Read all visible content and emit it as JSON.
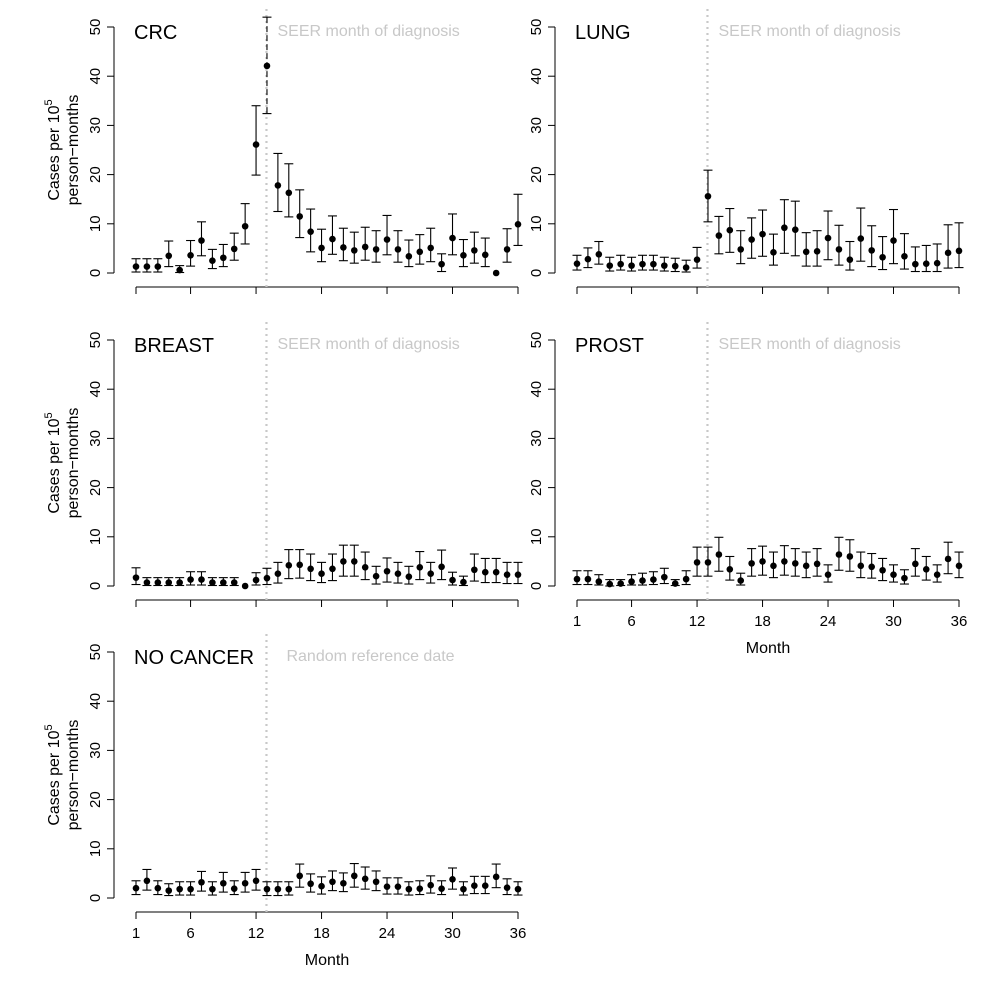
{
  "chart_data": [
    {
      "type": "scatter",
      "panel": "CRC",
      "label": "CRC",
      "annotation": "SEER month of diagnosis",
      "ylabel_line1": "Cases per 10",
      "ylabel_sup": "5",
      "ylabel_line2": "person−months",
      "xlabel": "",
      "ylim": [
        0,
        50
      ],
      "yticks": [
        0,
        10,
        20,
        30,
        40,
        50
      ],
      "xlim": [
        1,
        36
      ],
      "xticks": [],
      "reference_month": 13,
      "points": {
        "x": [
          1,
          2,
          3,
          4,
          5,
          6,
          7,
          8,
          9,
          10,
          11,
          12,
          13,
          14,
          15,
          16,
          17,
          18,
          19,
          20,
          21,
          22,
          23,
          24,
          25,
          26,
          27,
          28,
          29,
          30,
          31,
          32,
          33,
          34,
          35,
          36
        ],
        "y": [
          1.3,
          1.3,
          1.3,
          3.5,
          0.6,
          3.6,
          6.6,
          2.5,
          3.1,
          4.9,
          9.5,
          26.1,
          42.1,
          17.8,
          16.3,
          11.5,
          8.4,
          5.1,
          6.9,
          5.2,
          4.6,
          5.3,
          4.8,
          6.8,
          4.8,
          3.4,
          4.3,
          5.1,
          1.8,
          7.1,
          3.6,
          4.6,
          3.7,
          0.0,
          4.8,
          9.9
        ],
        "lower": [
          0.2,
          0.2,
          0.2,
          1.3,
          0.1,
          1.4,
          3.5,
          0.9,
          1.3,
          2.6,
          5.9,
          19.9,
          32.4,
          12.5,
          11.4,
          7.2,
          4.3,
          2.3,
          3.8,
          2.5,
          2.0,
          2.6,
          2.2,
          3.7,
          2.2,
          1.3,
          1.8,
          2.3,
          0.3,
          3.7,
          1.3,
          2.0,
          1.3,
          0.0,
          2.2,
          5.6
        ],
        "upper": [
          2.9,
          2.9,
          2.9,
          6.5,
          1.5,
          6.6,
          10.4,
          4.8,
          5.8,
          8.1,
          14.1,
          34.0,
          52.0,
          24.3,
          22.2,
          16.9,
          13.0,
          8.9,
          11.6,
          9.1,
          8.3,
          9.3,
          8.6,
          11.7,
          8.6,
          6.7,
          7.8,
          9.1,
          3.9,
          12.0,
          6.8,
          8.3,
          7.1,
          0.0,
          9.0,
          16.0
        ]
      }
    },
    {
      "type": "scatter",
      "panel": "LUNG",
      "label": "LUNG",
      "annotation": "SEER month of diagnosis",
      "ylabel_line1": "",
      "ylabel_sup": "",
      "ylabel_line2": "",
      "xlabel": "",
      "ylim": [
        0,
        50
      ],
      "yticks": [
        0,
        10,
        20,
        30,
        40,
        50
      ],
      "xlim": [
        1,
        36
      ],
      "xticks": [],
      "reference_month": 13,
      "points": {
        "x": [
          1,
          2,
          3,
          4,
          5,
          6,
          7,
          8,
          9,
          10,
          11,
          12,
          13,
          14,
          15,
          16,
          17,
          18,
          19,
          20,
          21,
          22,
          23,
          24,
          25,
          26,
          27,
          28,
          29,
          30,
          31,
          32,
          33,
          34,
          35,
          36
        ],
        "y": [
          1.9,
          2.8,
          3.8,
          1.5,
          1.8,
          1.5,
          1.8,
          1.8,
          1.5,
          1.4,
          1.1,
          2.7,
          15.6,
          7.6,
          8.7,
          4.8,
          6.8,
          7.9,
          4.2,
          9.2,
          8.8,
          4.3,
          4.4,
          7.1,
          4.8,
          2.7,
          7.0,
          4.6,
          3.2,
          6.6,
          3.4,
          1.8,
          1.9,
          2.0,
          4.1,
          4.5
        ],
        "lower": [
          0.6,
          1.1,
          1.8,
          0.4,
          0.6,
          0.4,
          0.6,
          0.6,
          0.4,
          0.3,
          0.2,
          1.0,
          10.4,
          3.9,
          4.2,
          1.9,
          3.0,
          3.4,
          1.6,
          4.0,
          3.5,
          1.4,
          1.4,
          2.7,
          1.6,
          0.6,
          2.4,
          1.3,
          0.7,
          1.9,
          0.8,
          0.3,
          0.3,
          0.3,
          1.0,
          1.1
        ],
        "upper": [
          3.6,
          5.1,
          6.4,
          3.2,
          3.6,
          3.2,
          3.6,
          3.6,
          3.2,
          3.0,
          2.6,
          5.2,
          20.9,
          11.5,
          13.1,
          8.6,
          11.2,
          12.8,
          7.9,
          14.9,
          14.6,
          8.2,
          8.6,
          12.6,
          9.7,
          6.4,
          13.2,
          9.6,
          7.4,
          12.9,
          8.0,
          5.3,
          5.6,
          5.9,
          9.8,
          10.2
        ]
      }
    },
    {
      "type": "scatter",
      "panel": "BREAST",
      "label": "BREAST",
      "annotation": "SEER month of diagnosis",
      "ylabel_line1": "Cases per 10",
      "ylabel_sup": "5",
      "ylabel_line2": "person−months",
      "xlabel": "",
      "ylim": [
        0,
        50
      ],
      "yticks": [
        0,
        10,
        20,
        30,
        40,
        50
      ],
      "xlim": [
        1,
        36
      ],
      "xticks": [],
      "reference_month": 13,
      "points": {
        "x": [
          1,
          2,
          3,
          4,
          5,
          6,
          7,
          8,
          9,
          10,
          11,
          12,
          13,
          14,
          15,
          16,
          17,
          18,
          19,
          20,
          21,
          22,
          23,
          24,
          25,
          26,
          27,
          28,
          29,
          30,
          31,
          32,
          33,
          34,
          35,
          36
        ],
        "y": [
          1.7,
          0.7,
          0.7,
          0.7,
          0.7,
          1.3,
          1.3,
          0.7,
          0.7,
          0.7,
          0.0,
          1.2,
          1.6,
          2.5,
          4.2,
          4.3,
          3.5,
          2.5,
          3.5,
          5.0,
          5.0,
          3.8,
          2.0,
          3.0,
          2.5,
          1.9,
          3.8,
          2.5,
          3.9,
          1.2,
          0.8,
          3.3,
          2.8,
          2.8,
          2.3,
          2.3
        ],
        "lower": [
          0.3,
          0.1,
          0.1,
          0.1,
          0.1,
          0.2,
          0.2,
          0.1,
          0.1,
          0.1,
          0.0,
          0.2,
          0.3,
          0.6,
          1.5,
          1.6,
          1.1,
          0.7,
          1.1,
          2.0,
          2.0,
          1.3,
          0.4,
          0.8,
          0.6,
          0.4,
          1.3,
          0.6,
          1.3,
          0.2,
          0.1,
          1.0,
          0.7,
          0.7,
          0.5,
          0.5
        ],
        "upper": [
          3.7,
          1.7,
          1.7,
          1.7,
          1.7,
          2.9,
          2.9,
          1.7,
          1.7,
          1.7,
          0.0,
          2.7,
          3.6,
          4.8,
          7.4,
          7.4,
          6.5,
          4.8,
          6.5,
          8.3,
          8.3,
          6.9,
          4.0,
          5.7,
          4.8,
          4.0,
          7.0,
          4.8,
          7.3,
          2.8,
          2.0,
          6.5,
          5.6,
          5.6,
          4.8,
          4.8
        ]
      }
    },
    {
      "type": "scatter",
      "panel": "PROST",
      "label": "PROST",
      "annotation": "SEER month of diagnosis",
      "ylabel_line1": "",
      "ylabel_sup": "",
      "ylabel_line2": "",
      "xlabel": "Month",
      "ylim": [
        0,
        50
      ],
      "yticks": [
        0,
        10,
        20,
        30,
        40,
        50
      ],
      "xlim": [
        1,
        36
      ],
      "xticks": [
        1,
        6,
        12,
        18,
        24,
        30,
        36
      ],
      "reference_month": 13,
      "points": {
        "x": [
          1,
          2,
          3,
          4,
          5,
          6,
          7,
          8,
          9,
          10,
          11,
          12,
          13,
          14,
          15,
          16,
          17,
          18,
          19,
          20,
          21,
          22,
          23,
          24,
          25,
          26,
          27,
          28,
          29,
          30,
          31,
          32,
          33,
          34,
          35,
          36
        ],
        "y": [
          1.4,
          1.4,
          0.9,
          0.4,
          0.5,
          0.9,
          1.1,
          1.3,
          1.8,
          0.5,
          1.4,
          4.8,
          4.8,
          6.4,
          3.4,
          1.1,
          4.6,
          5.0,
          4.1,
          5.0,
          4.6,
          4.1,
          4.5,
          2.3,
          6.4,
          6.0,
          4.1,
          3.9,
          3.2,
          2.3,
          1.6,
          4.5,
          3.4,
          2.3,
          5.5,
          4.1
        ],
        "lower": [
          0.3,
          0.3,
          0.2,
          0.0,
          0.1,
          0.2,
          0.2,
          0.3,
          0.5,
          0.1,
          0.3,
          2.0,
          2.0,
          3.0,
          1.2,
          0.2,
          2.0,
          2.2,
          1.7,
          2.2,
          2.0,
          1.7,
          2.0,
          0.8,
          3.2,
          3.0,
          1.7,
          1.6,
          1.1,
          0.8,
          0.4,
          2.0,
          1.2,
          0.8,
          2.5,
          1.7
        ],
        "upper": [
          3.1,
          3.1,
          2.3,
          1.3,
          1.3,
          2.3,
          2.6,
          2.9,
          3.6,
          1.3,
          3.1,
          7.9,
          7.9,
          9.9,
          6.0,
          2.6,
          7.6,
          8.1,
          6.9,
          8.2,
          7.6,
          6.9,
          7.6,
          4.3,
          9.9,
          9.4,
          6.9,
          6.6,
          5.6,
          4.3,
          3.3,
          7.6,
          6.0,
          4.3,
          8.9,
          6.9
        ]
      }
    },
    {
      "type": "scatter",
      "panel": "NO CANCER",
      "label": "NO CANCER",
      "annotation": "Random reference date",
      "ylabel_line1": "Cases per 10",
      "ylabel_sup": "5",
      "ylabel_line2": "person−months",
      "xlabel": "Month",
      "ylim": [
        0,
        50
      ],
      "yticks": [
        0,
        10,
        20,
        30,
        40,
        50
      ],
      "xlim": [
        1,
        36
      ],
      "xticks": [
        1,
        6,
        12,
        18,
        24,
        30,
        36
      ],
      "reference_month": 13,
      "points": {
        "x": [
          1,
          2,
          3,
          4,
          5,
          6,
          7,
          8,
          9,
          10,
          11,
          12,
          13,
          14,
          15,
          16,
          17,
          18,
          19,
          20,
          21,
          22,
          23,
          24,
          25,
          26,
          27,
          28,
          29,
          30,
          31,
          32,
          33,
          34,
          35,
          36
        ],
        "y": [
          2.0,
          3.5,
          2.0,
          1.5,
          1.8,
          1.8,
          3.2,
          1.8,
          3.0,
          1.9,
          3.0,
          3.5,
          1.8,
          1.8,
          1.8,
          4.5,
          2.9,
          2.4,
          3.3,
          3.0,
          4.5,
          3.9,
          3.3,
          2.3,
          2.3,
          1.8,
          1.9,
          2.6,
          1.9,
          3.8,
          1.8,
          2.5,
          2.5,
          4.3,
          2.1,
          1.8
        ],
        "lower": [
          0.7,
          1.6,
          0.7,
          0.5,
          0.6,
          0.6,
          1.4,
          0.6,
          1.2,
          0.7,
          1.2,
          1.6,
          0.5,
          0.5,
          0.6,
          2.2,
          1.2,
          0.8,
          1.5,
          1.3,
          2.2,
          1.8,
          1.5,
          0.8,
          0.8,
          0.6,
          0.7,
          1.0,
          0.7,
          1.8,
          0.6,
          0.9,
          0.9,
          2.1,
          0.7,
          0.6
        ],
        "upper": [
          3.5,
          5.8,
          3.5,
          2.9,
          3.3,
          3.3,
          5.4,
          3.3,
          5.2,
          3.5,
          5.2,
          5.8,
          3.3,
          3.3,
          3.3,
          6.9,
          4.9,
          4.3,
          5.5,
          5.1,
          7.0,
          6.3,
          5.5,
          4.1,
          4.1,
          3.3,
          3.5,
          4.5,
          3.5,
          6.1,
          3.3,
          4.4,
          4.4,
          6.9,
          3.9,
          3.3
        ]
      }
    }
  ]
}
